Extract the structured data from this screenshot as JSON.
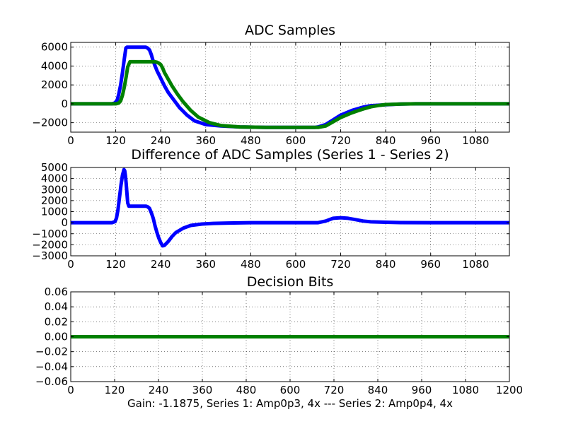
{
  "chart_data": [
    {
      "type": "line",
      "title": "ADC Samples",
      "xlabel": "",
      "ylabel": "",
      "xlim": [
        0,
        1170
      ],
      "ylim": [
        -3000,
        6500
      ],
      "xticks": [
        "0",
        "120",
        "240",
        "360",
        "480",
        "600",
        "720",
        "840",
        "960",
        "1080"
      ],
      "yticks": [
        {
          "v": -2000,
          "label": "−2000"
        },
        {
          "v": 0,
          "label": "0"
        },
        {
          "v": 2000,
          "label": "2000"
        },
        {
          "v": 4000,
          "label": "4000"
        },
        {
          "v": 6000,
          "label": "6000"
        }
      ],
      "grid": true,
      "series": [
        {
          "name": "Series 1",
          "color": "#0000ff",
          "x": [
            0,
            110,
            118,
            124,
            128,
            133,
            138,
            143,
            147,
            150,
            155,
            160,
            170,
            180,
            190,
            200,
            205,
            210,
            215,
            220,
            230,
            240,
            250,
            260,
            275,
            290,
            310,
            330,
            360,
            400,
            450,
            520,
            600,
            650,
            660,
            680,
            700,
            720,
            750,
            780,
            800,
            840,
            880,
            920,
            1000,
            1100,
            1170
          ],
          "y": [
            0,
            0,
            100,
            400,
            1000,
            2000,
            3300,
            4800,
            5900,
            6000,
            6000,
            6000,
            6000,
            6000,
            6000,
            6000,
            5900,
            5700,
            5200,
            4500,
            3500,
            2700,
            1900,
            1200,
            400,
            -400,
            -1200,
            -1800,
            -2200,
            -2350,
            -2450,
            -2500,
            -2500,
            -2500,
            -2450,
            -2200,
            -1700,
            -1200,
            -700,
            -350,
            -200,
            -100,
            -30,
            0,
            0,
            0,
            0
          ]
        },
        {
          "name": "Series 2",
          "color": "#008000",
          "x": [
            0,
            120,
            128,
            133,
            138,
            143,
            148,
            152,
            158,
            160,
            170,
            180,
            190,
            200,
            210,
            220,
            225,
            230,
            235,
            240,
            245,
            250,
            260,
            270,
            285,
            300,
            320,
            340,
            370,
            400,
            450,
            520,
            600,
            660,
            680,
            700,
            720,
            750,
            780,
            800,
            820,
            840,
            880,
            920,
            1000,
            1100,
            1170
          ],
          "y": [
            0,
            0,
            80,
            300,
            900,
            1800,
            2900,
            3900,
            4450,
            4450,
            4450,
            4450,
            4450,
            4450,
            4450,
            4450,
            4450,
            4400,
            4300,
            4150,
            3800,
            3300,
            2600,
            1900,
            1000,
            200,
            -700,
            -1400,
            -2000,
            -2300,
            -2450,
            -2500,
            -2500,
            -2500,
            -2350,
            -1900,
            -1450,
            -950,
            -550,
            -320,
            -180,
            -80,
            -20,
            0,
            0,
            0,
            0
          ]
        }
      ]
    },
    {
      "type": "line",
      "title": "Difference of ADC Samples (Series 1 - Series 2)",
      "xlabel": "",
      "ylabel": "",
      "xlim": [
        0,
        1170
      ],
      "ylim": [
        -3000,
        5000
      ],
      "xticks": [
        "0",
        "120",
        "240",
        "360",
        "480",
        "600",
        "720",
        "840",
        "960",
        "1080"
      ],
      "yticks": [
        {
          "v": -3000,
          "label": "−3000"
        },
        {
          "v": -2000,
          "label": "−2000"
        },
        {
          "v": -1000,
          "label": "−1000"
        },
        {
          "v": 0,
          "label": "0"
        },
        {
          "v": 1000,
          "label": "1000"
        },
        {
          "v": 2000,
          "label": "2000"
        },
        {
          "v": 3000,
          "label": "3000"
        },
        {
          "v": 4000,
          "label": "4000"
        },
        {
          "v": 5000,
          "label": "5000"
        }
      ],
      "grid": true,
      "series": [
        {
          "name": "Difference",
          "color": "#0000ff",
          "x": [
            0,
            110,
            118,
            122,
            126,
            130,
            134,
            138,
            142,
            144,
            146,
            148,
            150,
            152,
            155,
            160,
            170,
            180,
            190,
            200,
            205,
            210,
            215,
            220,
            225,
            230,
            235,
            240,
            245,
            250,
            260,
            270,
            280,
            300,
            320,
            350,
            380,
            420,
            480,
            600,
            660,
            680,
            700,
            720,
            740,
            760,
            780,
            800,
            840,
            880,
            960,
            1100,
            1170
          ],
          "y": [
            0,
            0,
            100,
            400,
            1200,
            2300,
            3400,
            4300,
            4800,
            4700,
            4200,
            3500,
            2600,
            1800,
            1500,
            1500,
            1500,
            1500,
            1500,
            1500,
            1450,
            1300,
            900,
            400,
            -300,
            -900,
            -1400,
            -1800,
            -2100,
            -2050,
            -1700,
            -1250,
            -900,
            -500,
            -250,
            -120,
            -60,
            -30,
            0,
            0,
            0,
            150,
            400,
            450,
            400,
            280,
            150,
            80,
            40,
            10,
            0,
            0,
            0
          ]
        }
      ]
    },
    {
      "type": "line",
      "title": "Decision Bits",
      "xlabel": "Gain: -1.1875, Series 1: Amp0p3, 4x --- Series 2: Amp0p4, 4x",
      "ylabel": "",
      "xlim": [
        0,
        1200
      ],
      "ylim": [
        -0.06,
        0.06
      ],
      "xticks": [
        "0",
        "120",
        "240",
        "360",
        "480",
        "600",
        "720",
        "840",
        "960",
        "1080",
        "1200"
      ],
      "yticks": [
        {
          "v": -0.06,
          "label": "−0.06"
        },
        {
          "v": -0.04,
          "label": "−0.04"
        },
        {
          "v": -0.02,
          "label": "−0.02"
        },
        {
          "v": 0.0,
          "label": "0.00"
        },
        {
          "v": 0.02,
          "label": "0.02"
        },
        {
          "v": 0.04,
          "label": "0.04"
        },
        {
          "v": 0.06,
          "label": "0.06"
        }
      ],
      "grid": true,
      "series": [
        {
          "name": "Decision",
          "color": "#008000",
          "x": [
            0,
            1200
          ],
          "y": [
            0,
            0
          ]
        }
      ]
    }
  ]
}
